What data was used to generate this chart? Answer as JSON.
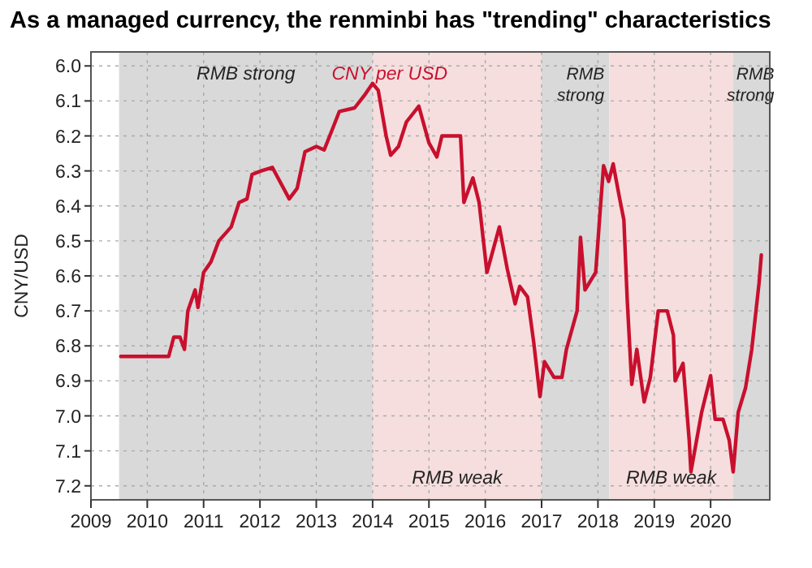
{
  "chart_data": {
    "type": "line",
    "title": "As a managed currency, the renminbi has \"trending\" characteristics",
    "ylabel": "CNY/USD",
    "xlim": [
      2009.0,
      2021.05
    ],
    "xticks": [
      2009,
      2010,
      2011,
      2012,
      2013,
      2014,
      2015,
      2016,
      2017,
      2018,
      2019,
      2020
    ],
    "ylim": [
      7.24,
      5.96
    ],
    "yticks": [
      {
        "value": 6.0,
        "label": "6.0"
      },
      6.1,
      6.2,
      6.3,
      6.4,
      6.5,
      6.6,
      6.7,
      6.8,
      6.9,
      {
        "value": 7.0,
        "label": "7.0"
      },
      7.1,
      7.2
    ],
    "grid": true,
    "legend": "top",
    "bands": [
      {
        "axis": "x",
        "from": 2009.5,
        "to": 2014.0,
        "label": "RMB strong",
        "color": "#d9d9d9"
      },
      {
        "axis": "x",
        "from": 2014.0,
        "to": 2017.0,
        "label": "RMB weak",
        "color": "#f6dede"
      },
      {
        "axis": "x",
        "from": 2017.0,
        "to": 2018.2,
        "label": "RMB strong",
        "color": "#d9d9d9"
      },
      {
        "axis": "x",
        "from": 2018.2,
        "to": 2020.4,
        "label": "RMB weak",
        "color": "#f6dede"
      },
      {
        "axis": "x",
        "from": 2020.4,
        "to": 2021.05,
        "label": "RMB strong",
        "color": "#d9d9d9"
      }
    ],
    "series": [
      {
        "name": "CNY per USD",
        "color": "#c8102e",
        "x": [
          2009.53,
          2010.38,
          2010.47,
          2010.58,
          2010.66,
          2010.72,
          2010.85,
          2010.9,
          2011.0,
          2011.13,
          2011.27,
          2011.49,
          2011.63,
          2011.77,
          2011.86,
          2012.02,
          2012.22,
          2012.52,
          2012.66,
          2012.8,
          2013.0,
          2013.14,
          2013.3,
          2013.41,
          2013.68,
          2013.85,
          2014.0,
          2014.1,
          2014.24,
          2014.32,
          2014.46,
          2014.6,
          2014.82,
          2015.0,
          2015.14,
          2015.23,
          2015.56,
          2015.62,
          2015.78,
          2015.89,
          2016.03,
          2016.25,
          2016.39,
          2016.53,
          2016.61,
          2016.75,
          2016.86,
          2016.97,
          2017.05,
          2017.22,
          2017.36,
          2017.44,
          2017.63,
          2017.69,
          2017.77,
          2017.96,
          2018.05,
          2018.1,
          2018.19,
          2018.27,
          2018.38,
          2018.46,
          2018.52,
          2018.6,
          2018.69,
          2018.82,
          2018.93,
          2019.07,
          2019.23,
          2019.34,
          2019.37,
          2019.51,
          2019.62,
          2019.65,
          2019.84,
          2020.0,
          2020.08,
          2020.22,
          2020.33,
          2020.4,
          2020.49,
          2020.62,
          2020.73,
          2020.86,
          2020.9
        ],
        "values": [
          6.83,
          6.83,
          6.775,
          6.775,
          6.81,
          6.7,
          6.64,
          6.69,
          6.59,
          6.56,
          6.5,
          6.46,
          6.39,
          6.38,
          6.31,
          6.3,
          6.29,
          6.38,
          6.35,
          6.245,
          6.23,
          6.24,
          6.175,
          6.13,
          6.12,
          6.085,
          6.05,
          6.07,
          6.2,
          6.255,
          6.23,
          6.16,
          6.115,
          6.22,
          6.26,
          6.2,
          6.2,
          6.39,
          6.32,
          6.39,
          6.59,
          6.46,
          6.58,
          6.68,
          6.63,
          6.66,
          6.79,
          6.945,
          6.845,
          6.89,
          6.89,
          6.81,
          6.7,
          6.49,
          6.64,
          6.59,
          6.39,
          6.285,
          6.33,
          6.28,
          6.375,
          6.44,
          6.67,
          6.91,
          6.81,
          6.96,
          6.89,
          6.7,
          6.7,
          6.77,
          6.9,
          6.85,
          7.07,
          7.16,
          6.99,
          6.885,
          7.01,
          7.01,
          7.07,
          7.16,
          6.99,
          6.92,
          6.81,
          6.62,
          6.54
        ]
      }
    ]
  }
}
